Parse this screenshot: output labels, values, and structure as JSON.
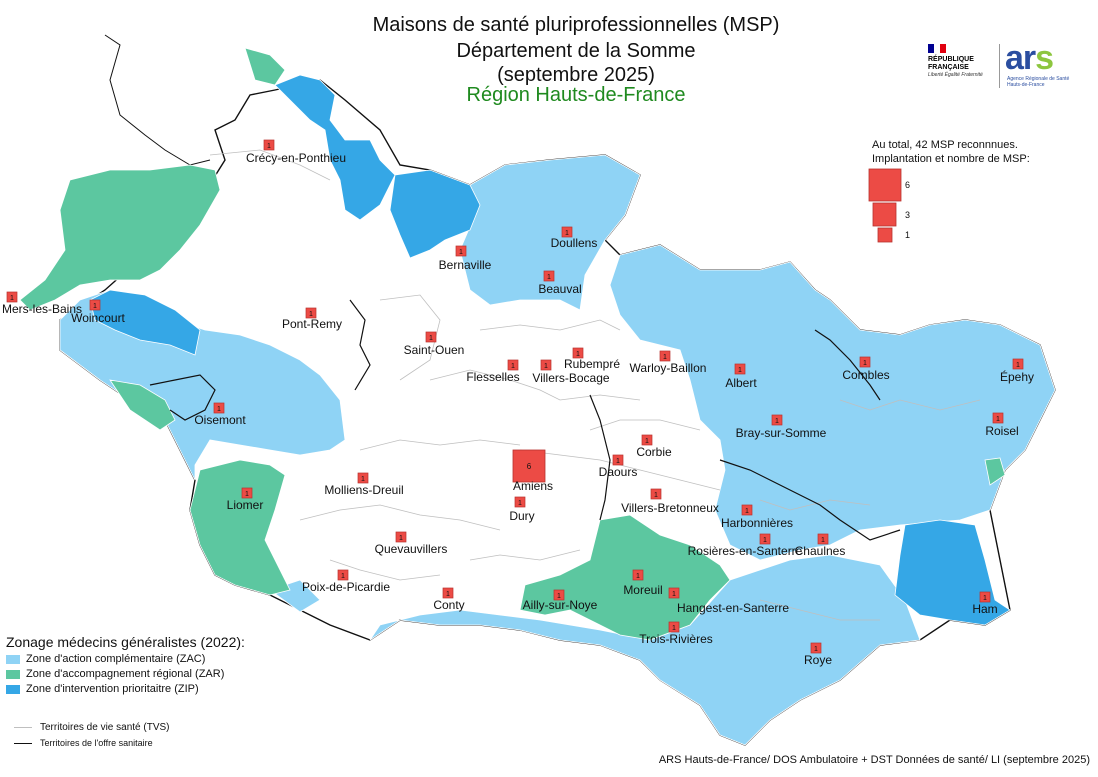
{
  "title": {
    "line1": "Maisons de santé pluriprofessionnelles (MSP)",
    "line2": "Département de la Somme",
    "line3": "(septembre 2025)",
    "line4": "Région Hauts-de-France"
  },
  "logos": {
    "rf_name": "RÉPUBLIQUE FRANÇAISE",
    "rf_motto": "Liberté Égalité Fraternité",
    "ars_word": "ar",
    "ars_s": "s",
    "ars_sub": "Agence Régionale de Santé Hauts-de-France"
  },
  "colors": {
    "zac": "#8fd3f5",
    "zar": "#5cc7a0",
    "zip": "#35a7e6",
    "msp": "#ec4b45",
    "title_region": "#1f8a1f"
  },
  "msp_legend": {
    "line1": "Au total, 42 MSP reconnnues.",
    "line2": "Implantation et nombre de MSP:",
    "sizes": [
      "6",
      "3",
      "1"
    ]
  },
  "zone_legend": {
    "title": "Zonage médecins généralistes (2022):",
    "items": [
      {
        "label": "Zone d'action complémentaire (ZAC)",
        "color": "#8fd3f5"
      },
      {
        "label": "Zone d'accompagnement régional (ZAR)",
        "color": "#5cc7a0"
      },
      {
        "label": "Zone d'intervention prioritaitre (ZIP)",
        "color": "#35a7e6"
      }
    ]
  },
  "line_legend": {
    "tvs": "Territoires de vie santé (TVS)",
    "tos": "Territoires de l'offre sanitaire"
  },
  "source": "ARS Hauts-de-France/ DOS Ambulatoire + DST Données de santé/ LI (septembre 2025)",
  "msp_sites": [
    {
      "name": "Crécy-en-Ponthieu",
      "count": 1
    },
    {
      "name": "Doullens",
      "count": 1
    },
    {
      "name": "Bernaville",
      "count": 1
    },
    {
      "name": "Beauval",
      "count": 1
    },
    {
      "name": "Mers-les-Bains",
      "count": 1
    },
    {
      "name": "Woincourt",
      "count": 1
    },
    {
      "name": "Pont-Remy",
      "count": 1
    },
    {
      "name": "Saint-Ouen",
      "count": 1
    },
    {
      "name": "Rubempré",
      "count": 1
    },
    {
      "name": "Flesselles",
      "count": 1
    },
    {
      "name": "Villers-Bocage",
      "count": 1
    },
    {
      "name": "Warloy-Baillon",
      "count": 1
    },
    {
      "name": "Albert",
      "count": 1
    },
    {
      "name": "Combles",
      "count": 1
    },
    {
      "name": "Épehy",
      "count": 1
    },
    {
      "name": "Oisemont",
      "count": 1
    },
    {
      "name": "Bray-sur-Somme",
      "count": 1
    },
    {
      "name": "Roisel",
      "count": 1
    },
    {
      "name": "Corbie",
      "count": 1
    },
    {
      "name": "Amiens",
      "count": 6
    },
    {
      "name": "Daours",
      "count": 1
    },
    {
      "name": "Liomer",
      "count": 1
    },
    {
      "name": "Molliens-Dreuil",
      "count": 1
    },
    {
      "name": "Dury",
      "count": 1
    },
    {
      "name": "Villers-Bretonneux",
      "count": 1
    },
    {
      "name": "Harbonnières",
      "count": 1
    },
    {
      "name": "Quevauvillers",
      "count": 1
    },
    {
      "name": "Rosières-en-Santerre",
      "count": 1
    },
    {
      "name": "Chaulnes",
      "count": 1
    },
    {
      "name": "Poix-de-Picardie",
      "count": 1
    },
    {
      "name": "Conty",
      "count": 1
    },
    {
      "name": "Moreuil",
      "count": 1
    },
    {
      "name": "Ailly-sur-Noye",
      "count": 1
    },
    {
      "name": "Hangest-en-Santerre",
      "count": 1
    },
    {
      "name": "Ham",
      "count": 1
    },
    {
      "name": "Trois-Rivières",
      "count": 1
    },
    {
      "name": "Roye",
      "count": 1
    }
  ]
}
